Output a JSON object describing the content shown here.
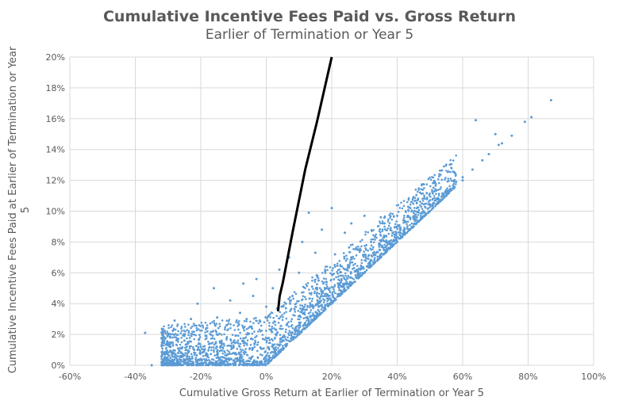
{
  "chart_data": {
    "type": "scatter",
    "title": "Cumulative Incentive Fees Paid vs. Gross Return",
    "subtitle": "Earlier of Termination or Year 5",
    "xlabel": "Cumulative Gross Return at Earlier of Termination or Year 5",
    "ylabel": "Cumulative Incentive Fees Paid at Earlier of Termination or Year 5",
    "xlim": [
      -60,
      100
    ],
    "ylim": [
      0,
      20
    ],
    "xticks": [
      "-60%",
      "-40%",
      "-20%",
      "0%",
      "20%",
      "40%",
      "60%",
      "80%",
      "100%"
    ],
    "yticks": [
      "0%",
      "2%",
      "4%",
      "6%",
      "8%",
      "10%",
      "12%",
      "14%",
      "16%",
      "18%",
      "20%"
    ],
    "grid": true,
    "series_color": "#5b9bd5",
    "line_color": "#000000",
    "points": [
      [
        -37,
        2.1
      ],
      [
        -35,
        0
      ],
      [
        -31,
        0.1
      ],
      [
        -28,
        2.9
      ],
      [
        -25,
        1.6
      ],
      [
        -23,
        3.0
      ],
      [
        -21,
        4.0
      ],
      [
        -20,
        1.2
      ],
      [
        -18,
        2.2
      ],
      [
        -16,
        5.0
      ],
      [
        -15,
        3.1
      ],
      [
        -14,
        1.5
      ],
      [
        -12,
        2.6
      ],
      [
        -11,
        4.2
      ],
      [
        -10,
        0.8
      ],
      [
        -8,
        3.4
      ],
      [
        -7,
        5.3
      ],
      [
        -6,
        2.0
      ],
      [
        -5,
        1.1
      ],
      [
        -4,
        4.5
      ],
      [
        -3,
        5.6
      ],
      [
        -2,
        2.9
      ],
      [
        -1,
        1.7
      ],
      [
        0,
        3.8
      ],
      [
        1,
        0.5
      ],
      [
        2,
        5.0
      ],
      [
        3,
        2.3
      ],
      [
        4,
        6.2
      ],
      [
        5,
        1.6
      ],
      [
        6,
        3.7
      ],
      [
        7,
        7.0
      ],
      [
        8,
        4.5
      ],
      [
        9,
        2.4
      ],
      [
        10,
        6.0
      ],
      [
        11,
        8.0
      ],
      [
        12,
        3.6
      ],
      [
        13,
        9.9
      ],
      [
        14,
        5.1
      ],
      [
        15,
        7.3
      ],
      [
        16,
        3.8
      ],
      [
        17,
        8.8
      ],
      [
        18,
        6.1
      ],
      [
        19,
        4.5
      ],
      [
        20,
        10.2
      ],
      [
        21,
        7.2
      ],
      [
        22,
        5.3
      ],
      [
        24,
        8.6
      ],
      [
        25,
        6.4
      ],
      [
        26,
        9.2
      ],
      [
        28,
        7.5
      ],
      [
        29,
        6.3
      ],
      [
        30,
        9.7
      ],
      [
        32,
        8.0
      ],
      [
        33,
        7.2
      ],
      [
        35,
        9.6
      ],
      [
        36,
        8.3
      ],
      [
        38,
        8.9
      ],
      [
        40,
        9.7
      ],
      [
        42,
        9.4
      ],
      [
        44,
        10.2
      ],
      [
        45,
        9.5
      ],
      [
        47,
        11.2
      ],
      [
        48,
        10.0
      ],
      [
        50,
        10.7
      ],
      [
        52,
        10.8
      ],
      [
        55,
        11.2
      ],
      [
        58,
        11.9
      ],
      [
        60,
        12.2
      ],
      [
        63,
        12.7
      ],
      [
        64,
        15.9
      ],
      [
        66,
        13.3
      ],
      [
        68,
        13.7
      ],
      [
        70,
        15.0
      ],
      [
        71,
        14.3
      ],
      [
        72,
        14.4
      ],
      [
        75,
        14.9
      ],
      [
        79,
        15.8
      ],
      [
        81,
        16.1
      ],
      [
        87,
        17.2
      ],
      [
        -30,
        0
      ],
      [
        -25,
        0.3
      ],
      [
        -20,
        0.4
      ],
      [
        -15,
        0.9
      ],
      [
        -10,
        1.5
      ],
      [
        -5,
        2.5
      ],
      [
        0,
        0.6
      ],
      [
        5,
        1.0
      ],
      [
        10,
        2.0
      ],
      [
        15,
        3.0
      ],
      [
        20,
        4.0
      ],
      [
        25,
        5.0
      ],
      [
        30,
        6.0
      ],
      [
        35,
        7.0
      ],
      [
        40,
        8.0
      ],
      [
        45,
        9.0
      ],
      [
        50,
        10.0
      ],
      [
        55,
        11.0
      ],
      [
        60,
        12.0
      ],
      [
        -22,
        1.0
      ],
      [
        -12,
        0.4
      ],
      [
        -2,
        0.2
      ],
      [
        8,
        1.8
      ],
      [
        18,
        3.9
      ],
      [
        28,
        5.9
      ],
      [
        38,
        7.8
      ],
      [
        -18,
        0.6
      ],
      [
        -8,
        0.5
      ],
      [
        3,
        0.7
      ],
      [
        12,
        2.6
      ],
      [
        22,
        4.6
      ],
      [
        32,
        6.5
      ],
      [
        42,
        8.5
      ],
      [
        -26,
        0.8
      ],
      [
        -6,
        3.0
      ],
      [
        6,
        4.0
      ],
      [
        16,
        5.5
      ],
      [
        26,
        7.0
      ],
      [
        36,
        8.4
      ],
      [
        46,
        9.6
      ]
    ],
    "line": [
      [
        3.6,
        3.5
      ],
      [
        4.1,
        4.5
      ],
      [
        5.1,
        5.4
      ],
      [
        8.2,
        8.8
      ],
      [
        11.9,
        12.7
      ],
      [
        15.5,
        15.8
      ],
      [
        20,
        20
      ]
    ]
  }
}
